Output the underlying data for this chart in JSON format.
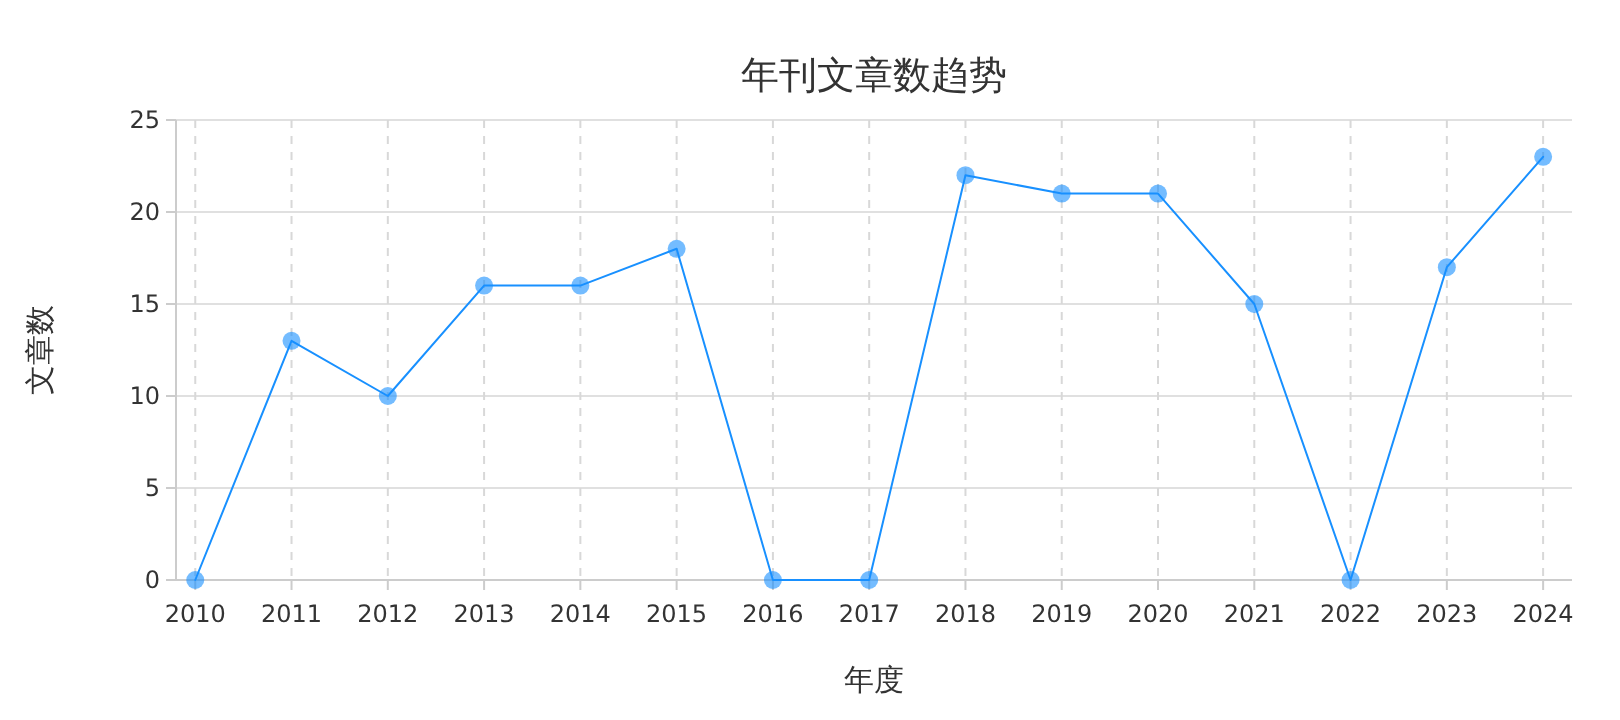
{
  "chart_data": {
    "type": "line",
    "title": "年刊文章数趋势",
    "xlabel": "年度",
    "ylabel": "文章数",
    "x": [
      2010,
      2011,
      2012,
      2013,
      2014,
      2015,
      2016,
      2017,
      2018,
      2019,
      2020,
      2021,
      2022,
      2023,
      2024
    ],
    "series": [
      {
        "color": "#1890ff",
        "values": [
          0,
          13,
          10,
          16,
          16,
          18,
          0,
          0,
          22,
          21,
          21,
          15,
          0,
          17,
          23
        ]
      }
    ],
    "xlim": [
      2009.8,
      2024.3
    ],
    "xticks": [
      2010,
      2011,
      2012,
      2013,
      2014,
      2015,
      2016,
      2017,
      2018,
      2019,
      2020,
      2021,
      2022,
      2023,
      2024
    ],
    "ylim": [
      0,
      25
    ],
    "yticks": [
      0,
      5,
      10,
      15,
      20,
      25
    ],
    "grid": true,
    "marker": "circle",
    "line_style": "solid"
  }
}
